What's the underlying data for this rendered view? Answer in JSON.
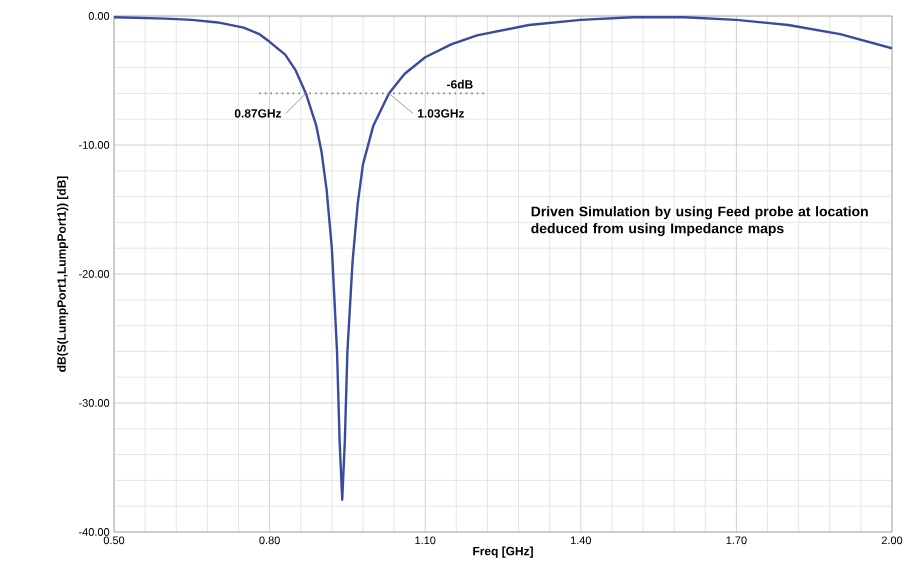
{
  "chart_data": {
    "type": "line",
    "xlabel": "Freq [GHz]",
    "ylabel": "dB(S(LumpPort1,LumpPort1)) [dB]",
    "x": [
      0.5,
      0.6,
      0.65,
      0.7,
      0.75,
      0.78,
      0.8,
      0.83,
      0.85,
      0.87,
      0.89,
      0.9,
      0.91,
      0.92,
      0.93,
      0.935,
      0.94,
      0.945,
      0.95,
      0.96,
      0.97,
      0.98,
      1.0,
      1.03,
      1.06,
      1.1,
      1.15,
      1.2,
      1.3,
      1.4,
      1.5,
      1.6,
      1.7,
      1.8,
      1.9,
      2.0
    ],
    "series": [
      {
        "color": "#3a4a9c",
        "values": [
          -0.1,
          -0.2,
          -0.3,
          -0.5,
          -0.9,
          -1.4,
          -2.0,
          -3.0,
          -4.2,
          -6.0,
          -8.5,
          -10.5,
          -13.5,
          -18,
          -26,
          -33,
          -37.5,
          -33,
          -26,
          -19,
          -14.5,
          -11.5,
          -8.5,
          -6.0,
          -4.5,
          -3.2,
          -2.2,
          -1.5,
          -0.7,
          -0.3,
          -0.1,
          -0.1,
          -0.3,
          -0.7,
          -1.4,
          -2.5
        ]
      }
    ],
    "xlim": [
      0.5,
      2.0
    ],
    "ylim": [
      -40,
      0
    ],
    "xticks": [
      {
        "value": 0.5,
        "label": "0.50"
      },
      {
        "value": 0.8,
        "label": "0.80"
      },
      {
        "value": 1.1,
        "label": "1.10"
      },
      {
        "value": 1.4,
        "label": "1.40"
      },
      {
        "value": 1.7,
        "label": "1.70"
      },
      {
        "value": 2.0,
        "label": "2.00"
      }
    ],
    "yticks": [
      {
        "value": -40,
        "label": "-40.00"
      },
      {
        "value": -30,
        "label": "-30.00"
      },
      {
        "value": -20,
        "label": "-20.00"
      },
      {
        "value": -10,
        "label": "-10.00"
      },
      {
        "value": 0,
        "label": "0.00"
      }
    ],
    "grid": true,
    "marker": "none",
    "line_style": "solid",
    "ref_lines": [
      {
        "axis": "y",
        "value": -6,
        "label": "-6dB",
        "line_style": "dotted",
        "color": "#808080"
      }
    ],
    "annotations": [
      {
        "text": "0.87GHz",
        "x": 0.87,
        "y": -6
      },
      {
        "text": "1.03GHz",
        "x": 1.03,
        "y": -6
      },
      "Driven Simulation by using Feed probe at location deduced from using Impedance maps"
    ]
  }
}
